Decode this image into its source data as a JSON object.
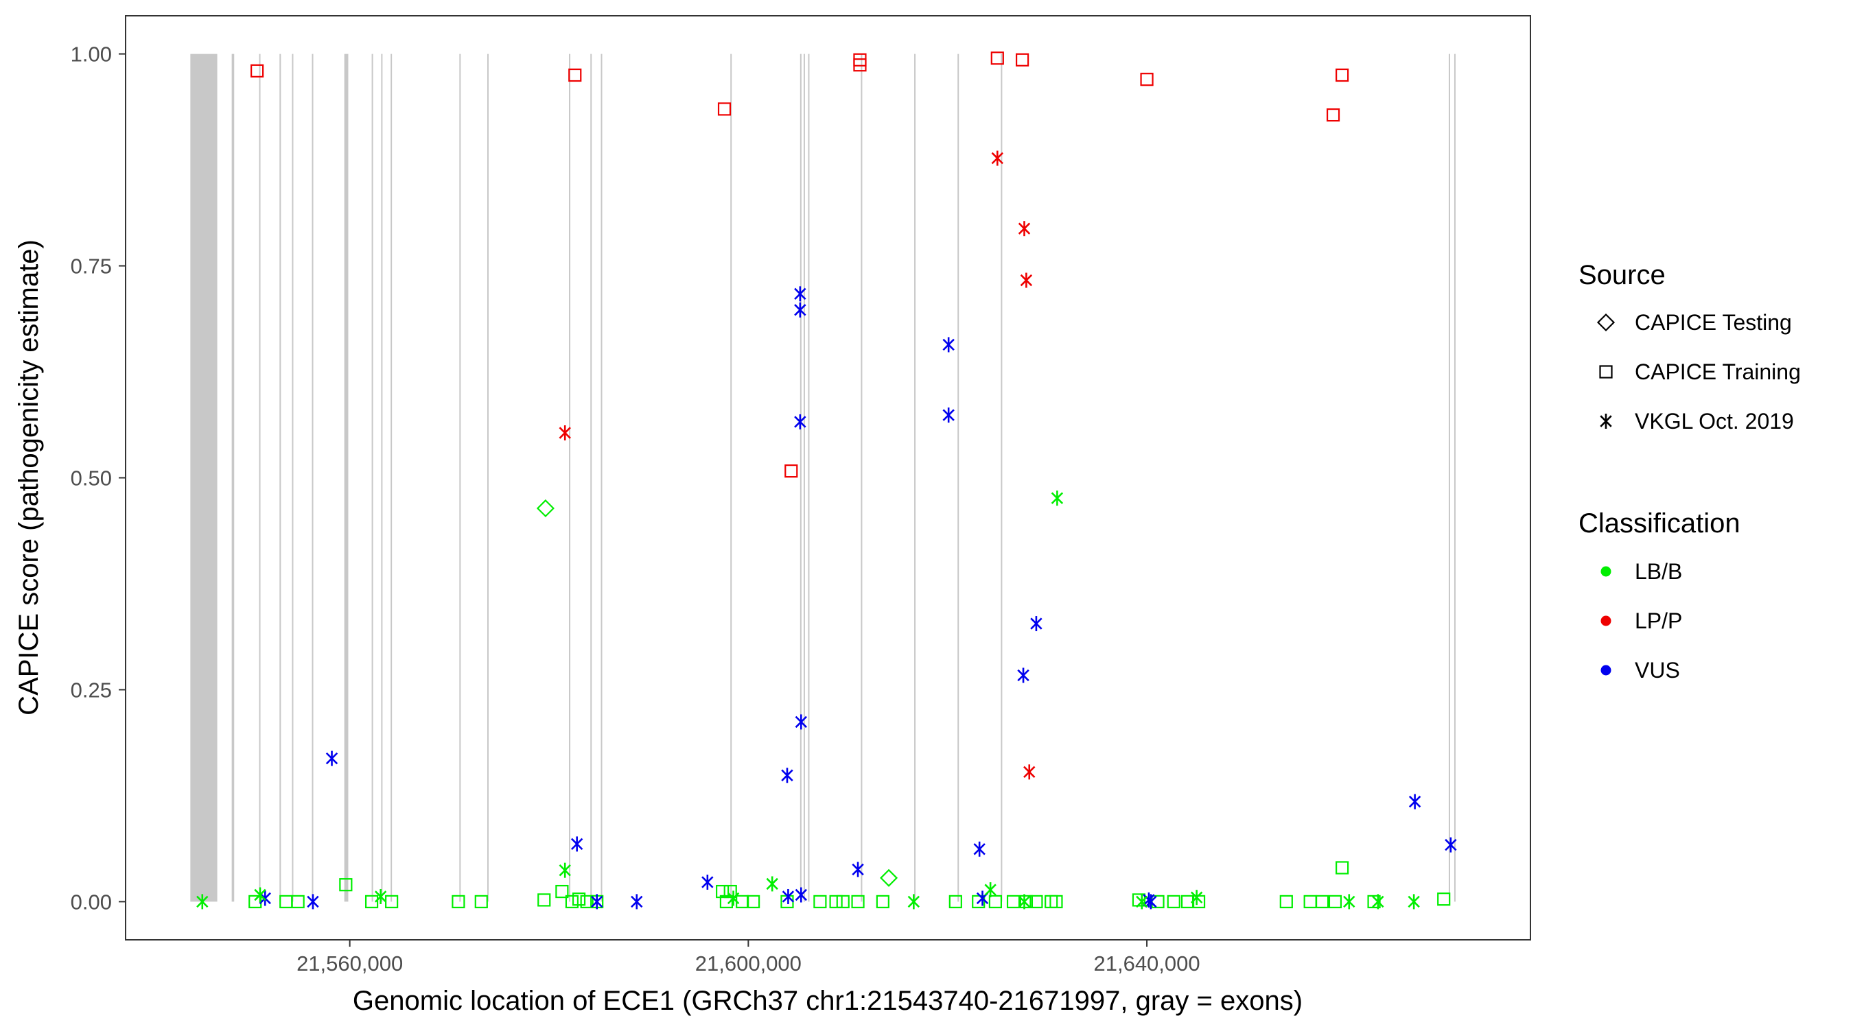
{
  "chart_data": {
    "type": "scatter",
    "title": "",
    "xlabel": "Genomic location of ECE1 (GRCh37 chr1:21543740-21671997, gray = exons)",
    "ylabel": "CAPICE score (pathogenicity estimate)",
    "xlim": [
      21537500,
      21678500
    ],
    "ylim": [
      -0.045,
      1.045
    ],
    "x_ticks": [
      21560000,
      21600000,
      21640000
    ],
    "x_tick_labels": [
      "21,560,000",
      "21,600,000",
      "21,640,000"
    ],
    "y_ticks": [
      0,
      0.25,
      0.5,
      0.75,
      1.0
    ],
    "y_tick_labels": [
      "0.00",
      "0.25",
      "0.50",
      "0.75",
      "1.00"
    ],
    "grid": false,
    "legend_position": "right",
    "legend": {
      "shape_title": "Source",
      "shape_entries": [
        {
          "label": "CAPICE Testing",
          "shape": "diamond"
        },
        {
          "label": "CAPICE Training",
          "shape": "square"
        },
        {
          "label": "VKGL Oct. 2019",
          "shape": "asterisk"
        }
      ],
      "color_title": "Classification",
      "color_entries": [
        {
          "label": "LB/B",
          "color": "#00ee00"
        },
        {
          "label": "LP/P",
          "color": "#ee0000"
        },
        {
          "label": "VUS",
          "color": "#0000ee"
        }
      ]
    },
    "exons": [
      [
        21544000,
        21546700
      ],
      [
        21548150,
        21548400
      ],
      [
        21550900,
        21551000
      ],
      [
        21552950,
        21553050
      ],
      [
        21554200,
        21554300
      ],
      [
        21556200,
        21556300
      ],
      [
        21559450,
        21559850
      ],
      [
        21562200,
        21562300
      ],
      [
        21563150,
        21563250
      ],
      [
        21564100,
        21564200
      ],
      [
        21571000,
        21571100
      ],
      [
        21573800,
        21573900
      ],
      [
        21582000,
        21582100
      ],
      [
        21584150,
        21584250
      ],
      [
        21585200,
        21585300
      ],
      [
        21598200,
        21598300
      ],
      [
        21605200,
        21605300
      ],
      [
        21605550,
        21605650
      ],
      [
        21606000,
        21606100
      ],
      [
        21611300,
        21611400
      ],
      [
        21616650,
        21616750
      ],
      [
        21621000,
        21621100
      ],
      [
        21625350,
        21625450
      ],
      [
        21670300,
        21670400
      ],
      [
        21670850,
        21670950
      ]
    ],
    "series": [
      {
        "source": "CAPICE Testing",
        "classification": "LB/B",
        "points": [
          [
            21579650,
            0.464
          ],
          [
            21614100,
            0.028
          ]
        ]
      },
      {
        "source": "CAPICE Training",
        "classification": "LP/P",
        "points": [
          [
            21550700,
            0.98
          ],
          [
            21582600,
            0.975
          ],
          [
            21597600,
            0.935
          ],
          [
            21604300,
            0.508
          ],
          [
            21611200,
            0.993
          ],
          [
            21611200,
            0.987
          ],
          [
            21625000,
            0.995
          ],
          [
            21627500,
            0.993
          ],
          [
            21640000,
            0.97
          ],
          [
            21658700,
            0.928
          ],
          [
            21659600,
            0.975
          ]
        ]
      },
      {
        "source": "CAPICE Training",
        "classification": "LB/B",
        "points": [
          [
            21550500,
            0.0
          ],
          [
            21553600,
            0.0
          ],
          [
            21554800,
            0.0
          ],
          [
            21559600,
            0.02
          ],
          [
            21562200,
            0.0
          ],
          [
            21564200,
            0.0
          ],
          [
            21570900,
            0.0
          ],
          [
            21573200,
            0.0
          ],
          [
            21579500,
            0.002
          ],
          [
            21581300,
            0.012
          ],
          [
            21582300,
            0.0
          ],
          [
            21583000,
            0.003
          ],
          [
            21583800,
            0.0
          ],
          [
            21584800,
            0.0
          ],
          [
            21597400,
            0.012
          ],
          [
            21598200,
            0.012
          ],
          [
            21597800,
            0.0
          ],
          [
            21599400,
            0.0
          ],
          [
            21600500,
            0.0
          ],
          [
            21603900,
            0.0
          ],
          [
            21607200,
            0.0
          ],
          [
            21608800,
            0.0
          ],
          [
            21609500,
            0.0
          ],
          [
            21611000,
            0.0
          ],
          [
            21613500,
            0.0
          ],
          [
            21620800,
            0.0
          ],
          [
            21623100,
            0.0
          ],
          [
            21624800,
            0.0
          ],
          [
            21626600,
            0.0
          ],
          [
            21627900,
            0.0
          ],
          [
            21628900,
            0.0
          ],
          [
            21630400,
            0.0
          ],
          [
            21630900,
            0.0
          ],
          [
            21639200,
            0.002
          ],
          [
            21641100,
            0.0
          ],
          [
            21642700,
            0.0
          ],
          [
            21644100,
            0.0
          ],
          [
            21645200,
            0.0
          ],
          [
            21654000,
            0.0
          ],
          [
            21656400,
            0.0
          ],
          [
            21657600,
            0.0
          ],
          [
            21658900,
            0.0
          ],
          [
            21659600,
            0.04
          ],
          [
            21662800,
            0.0
          ],
          [
            21669800,
            0.003
          ]
        ]
      },
      {
        "source": "VKGL Oct. 2019",
        "classification": "LP/P",
        "points": [
          [
            21581600,
            0.553
          ],
          [
            21625000,
            0.877
          ],
          [
            21627700,
            0.794
          ],
          [
            21627900,
            0.733
          ],
          [
            21628200,
            0.153
          ]
        ]
      },
      {
        "source": "VKGL Oct. 2019",
        "classification": "VUS",
        "points": [
          [
            21551500,
            0.004
          ],
          [
            21556300,
            0.0
          ],
          [
            21558200,
            0.169
          ],
          [
            21582800,
            0.068
          ],
          [
            21584800,
            0.0
          ],
          [
            21588800,
            0.0
          ],
          [
            21595900,
            0.023
          ],
          [
            21603900,
            0.149
          ],
          [
            21604000,
            0.006
          ],
          [
            21605200,
            0.717
          ],
          [
            21605200,
            0.698
          ],
          [
            21605200,
            0.566
          ],
          [
            21605300,
            0.212
          ],
          [
            21605300,
            0.008
          ],
          [
            21611000,
            0.038
          ],
          [
            21620100,
            0.657
          ],
          [
            21620100,
            0.574
          ],
          [
            21623200,
            0.062
          ],
          [
            21623500,
            0.004
          ],
          [
            21627600,
            0.267
          ],
          [
            21628900,
            0.328
          ],
          [
            21640200,
            0.002
          ],
          [
            21640400,
            0.0
          ],
          [
            21666900,
            0.118
          ],
          [
            21670500,
            0.067
          ]
        ]
      },
      {
        "source": "VKGL Oct. 2019",
        "classification": "LB/B",
        "points": [
          [
            21545200,
            0.0
          ],
          [
            21551000,
            0.008
          ],
          [
            21563100,
            0.006
          ],
          [
            21581600,
            0.037
          ],
          [
            21598500,
            0.004
          ],
          [
            21602400,
            0.021
          ],
          [
            21616600,
            0.0
          ],
          [
            21624300,
            0.014
          ],
          [
            21627700,
            0.0
          ],
          [
            21631000,
            0.476
          ],
          [
            21639500,
            0.0
          ],
          [
            21645000,
            0.005
          ],
          [
            21660300,
            0.0
          ],
          [
            21663200,
            0.0
          ],
          [
            21666800,
            0.0
          ]
        ]
      }
    ]
  }
}
